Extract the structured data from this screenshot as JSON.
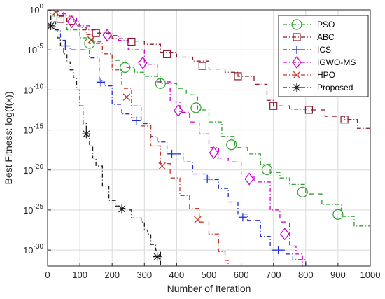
{
  "chart_data": {
    "type": "line",
    "xlabel": "Number of Iteration",
    "ylabel": "Best Fitness: log(f(x))",
    "xlim": [
      0,
      1000
    ],
    "ylim": [
      -32,
      0
    ],
    "y_scale": "log10",
    "grid": true,
    "legend_position": "top-right",
    "x_ticks": [
      "0",
      "100",
      "200",
      "300",
      "400",
      "500",
      "600",
      "700",
      "800",
      "900",
      "1000"
    ],
    "y_ticks": [
      {
        "base": "10",
        "exp": "0"
      },
      {
        "base": "10",
        "exp": "-5"
      },
      {
        "base": "10",
        "exp": "-10"
      },
      {
        "base": "10",
        "exp": "-15"
      },
      {
        "base": "10",
        "exp": "-20"
      },
      {
        "base": "10",
        "exp": "-25"
      },
      {
        "base": "10",
        "exp": "-30"
      }
    ],
    "series": [
      {
        "name": "PSO",
        "color": "#2ca02c",
        "dash": "6 3 1 3",
        "marker": "circle",
        "x": [
          0,
          20,
          60,
          100,
          130,
          170,
          200,
          240,
          270,
          300,
          350,
          400,
          430,
          465,
          500,
          540,
          580,
          620,
          660,
          690,
          720,
          750,
          800,
          850,
          910,
          950,
          1000
        ],
        "y": [
          0,
          -1.0,
          -2.5,
          -3.5,
          -4.2,
          -5.5,
          -6.3,
          -7.2,
          -7.8,
          -8.3,
          -9.2,
          -9.8,
          -10.6,
          -12.5,
          -14.0,
          -15.8,
          -17.2,
          -18.0,
          -19.3,
          -20.3,
          -21.0,
          -21.8,
          -23.0,
          -24.3,
          -25.8,
          -27.0,
          -29.8
        ]
      },
      {
        "name": "ABC",
        "color": "#8b1a2b",
        "dash": "6 3 1 3",
        "marker": "square",
        "x": [
          0,
          30,
          60,
          100,
          150,
          200,
          250,
          300,
          350,
          400,
          450,
          500,
          550,
          590,
          640,
          680,
          700,
          750,
          810,
          860,
          920,
          960,
          1000
        ],
        "y": [
          0,
          -0.8,
          -1.8,
          -2.5,
          -2.9,
          -3.6,
          -3.9,
          -4.3,
          -5.3,
          -5.9,
          -6.4,
          -7.4,
          -7.8,
          -8.3,
          -9.3,
          -11.3,
          -12.0,
          -12.4,
          -12.5,
          -13.3,
          -13.7,
          -14.8,
          -15.2
        ]
      },
      {
        "name": "ICS",
        "color": "#1f2fd0",
        "dash": "6 3 1 3",
        "marker": "plus",
        "x": [
          0,
          10,
          25,
          40,
          55,
          70,
          100,
          130,
          160,
          175,
          200,
          230,
          260,
          290,
          320,
          340,
          370,
          400,
          420,
          450,
          500,
          530,
          560,
          590,
          620,
          660,
          690,
          720,
          740,
          760,
          800
        ],
        "y": [
          0,
          -1.5,
          -2.5,
          -3.8,
          -4.5,
          -5.0,
          -5.0,
          -6.0,
          -8.8,
          -9.5,
          -11.8,
          -13.0,
          -13.5,
          -14.2,
          -15.8,
          -16.5,
          -18.0,
          -18.0,
          -19.0,
          -20.5,
          -21.2,
          -22.3,
          -24.0,
          -25.5,
          -26.3,
          -28.3,
          -30.0,
          -30.0,
          -30.5,
          -31.2,
          -32.5
        ]
      },
      {
        "name": "IGWO-MS",
        "color": "#cc00cc",
        "dash": "6 3 1 3",
        "marker": "diamond",
        "x": [
          0,
          30,
          60,
          90,
          130,
          160,
          190,
          220,
          250,
          300,
          340,
          380,
          410,
          440,
          470,
          500,
          530,
          560,
          600,
          640,
          690,
          720,
          750,
          770,
          790
        ],
        "y": [
          0,
          -0.5,
          -1.0,
          -2.0,
          -2.5,
          -3.0,
          -3.2,
          -3.8,
          -5.0,
          -6.8,
          -9.0,
          -11.5,
          -12.8,
          -14.0,
          -15.5,
          -17.2,
          -18.5,
          -19.0,
          -20.5,
          -21.5,
          -25.0,
          -26.5,
          -29.5,
          -30.5,
          -32.5
        ]
      },
      {
        "name": "HPO",
        "color": "#c0392b",
        "dash": "6 3 1 3",
        "marker": "x",
        "x": [
          0,
          20,
          50,
          80,
          100,
          120,
          140,
          170,
          200,
          230,
          260,
          290,
          320,
          350,
          380,
          410,
          440,
          470,
          500,
          530,
          550,
          560
        ],
        "y": [
          0,
          -0.2,
          -0.8,
          -1.5,
          -2.2,
          -3.1,
          -4.0,
          -5.5,
          -7.5,
          -9.8,
          -12.0,
          -14.5,
          -17.0,
          -19.2,
          -21.0,
          -23.2,
          -24.8,
          -26.5,
          -28.0,
          -30.2,
          -31.3,
          -32.5
        ]
      },
      {
        "name": "Proposed",
        "color": "#1a1a1a",
        "dash": "6 3 1 3",
        "marker": "asterisk",
        "x": [
          0,
          10,
          20,
          30,
          40,
          50,
          60,
          70,
          80,
          90,
          100,
          110,
          120,
          130,
          140,
          150,
          170,
          190,
          210,
          225,
          240,
          260,
          290,
          300,
          310,
          320,
          335,
          350
        ],
        "y": [
          0,
          -2.0,
          -2.5,
          -3.5,
          -4.5,
          -5.5,
          -6.5,
          -7.5,
          -8.5,
          -10.0,
          -12.0,
          -14.2,
          -15.5,
          -17.0,
          -18.5,
          -19.5,
          -22.0,
          -23.8,
          -24.5,
          -24.8,
          -25.0,
          -26.0,
          -26.5,
          -27.5,
          -28.0,
          -29.3,
          -30.0,
          -32.5
        ]
      }
    ]
  }
}
